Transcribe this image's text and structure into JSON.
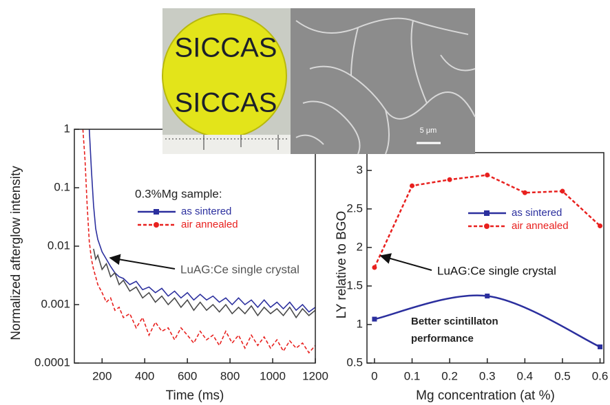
{
  "photo": {
    "labels": [
      "SICCAS",
      "SICCAS"
    ]
  },
  "sem": {
    "scale_label": "5 μm"
  },
  "chart_data": [
    {
      "type": "line",
      "x_label": "Time (ms)",
      "y_label": "Normalized afterglow intensity",
      "log_y": true,
      "markers": false,
      "xlim": [
        70,
        1200
      ],
      "ylim": [
        0.0001,
        1
      ],
      "xticks": [
        200,
        400,
        600,
        800,
        1000,
        1200
      ],
      "yticks": [
        1,
        0.1,
        0.01,
        0.001,
        0.0001
      ],
      "legend_title": "0.3%Mg sample:",
      "annotation": "LuAG:Ce single crystal",
      "x": [
        110,
        120,
        130,
        140,
        150,
        160,
        170,
        180,
        200,
        220,
        240,
        260,
        280,
        300,
        330,
        360,
        390,
        420,
        450,
        480,
        510,
        540,
        570,
        600,
        630,
        660,
        690,
        720,
        750,
        780,
        810,
        840,
        870,
        900,
        930,
        960,
        990,
        1020,
        1050,
        1080,
        1110,
        1140,
        1170,
        1200
      ],
      "series": [
        {
          "name": "as sintered",
          "color": "#2b2f9e",
          "marker": "square",
          "dash": false,
          "values": [
            null,
            null,
            null,
            1,
            0.2,
            0.05,
            0.02,
            0.013,
            0.008,
            0.006,
            0.0045,
            0.0035,
            0.003,
            0.0028,
            0.0022,
            0.0025,
            0.0018,
            0.002,
            0.0016,
            0.0019,
            0.0014,
            0.0017,
            0.0013,
            0.0016,
            0.0012,
            0.0015,
            0.0012,
            0.0014,
            0.0011,
            0.0013,
            0.001,
            0.0013,
            0.001,
            0.0012,
            0.0009,
            0.0012,
            0.0009,
            0.0011,
            0.00085,
            0.0011,
            0.0008,
            0.001,
            0.00075,
            0.0009
          ]
        },
        {
          "name": "air annealed",
          "color": "#e8201e",
          "marker": "circle",
          "dash": true,
          "values": [
            1,
            0.3,
            0.05,
            0.012,
            0.006,
            0.004,
            0.003,
            0.0022,
            0.0016,
            0.0011,
            0.0013,
            0.0008,
            0.0009,
            0.0006,
            0.0007,
            0.0004,
            0.0006,
            0.0003,
            0.0005,
            0.00035,
            0.0004,
            0.00025,
            0.0004,
            0.0003,
            0.00022,
            0.00035,
            0.00025,
            0.0003,
            0.0002,
            0.00035,
            0.00022,
            0.0003,
            0.00018,
            0.0003,
            0.0002,
            0.00028,
            0.00018,
            0.00025,
            0.00016,
            0.00024,
            0.00018,
            0.00022,
            0.00015,
            0.0002
          ]
        },
        {
          "color": "#4a4a4a",
          "dash": false,
          "values": [
            null,
            null,
            null,
            null,
            null,
            0.009,
            0.006,
            0.007,
            0.004,
            0.005,
            0.003,
            0.0035,
            0.0022,
            0.0026,
            0.0017,
            0.002,
            0.0013,
            0.0016,
            0.0011,
            0.0014,
            0.001,
            0.0013,
            0.0009,
            0.0012,
            0.0008,
            0.0011,
            0.0008,
            0.001,
            0.00075,
            0.001,
            0.0007,
            0.0009,
            0.0007,
            0.00095,
            0.00065,
            0.0009,
            0.0007,
            0.00085,
            0.00065,
            0.0009,
            0.0006,
            0.00085,
            0.00065,
            0.0008
          ]
        }
      ]
    },
    {
      "type": "line",
      "x_label": "Mg concentration (at %)",
      "y_label": "LY relative to BGO",
      "log_y": false,
      "markers": true,
      "xlim": [
        -0.02,
        0.61
      ],
      "ylim": [
        0.5,
        3.23
      ],
      "xticks": [
        0,
        0.1,
        0.2,
        0.3,
        0.4,
        0.5,
        0.6
      ],
      "yticks": [
        0.5,
        1,
        1.5,
        2,
        2.5,
        3
      ],
      "annotation": "LuAG:Ce single crystal",
      "note_lines": [
        "Better scintillaton",
        "performance"
      ],
      "series": [
        {
          "name": "as sintered",
          "color": "#2b2f9e",
          "marker": "square",
          "dash": false,
          "smooth": true,
          "x": [
            0,
            0.3,
            0.6
          ],
          "values": [
            1.07,
            1.37,
            0.71
          ]
        },
        {
          "name": "air annealed",
          "color": "#e8201e",
          "marker": "circle",
          "dash": true,
          "x": [
            0,
            0.1,
            0.2,
            0.3,
            0.4,
            0.5,
            0.6
          ],
          "values": [
            1.74,
            2.8,
            2.88,
            2.94,
            2.71,
            2.73,
            2.28
          ]
        }
      ]
    }
  ]
}
